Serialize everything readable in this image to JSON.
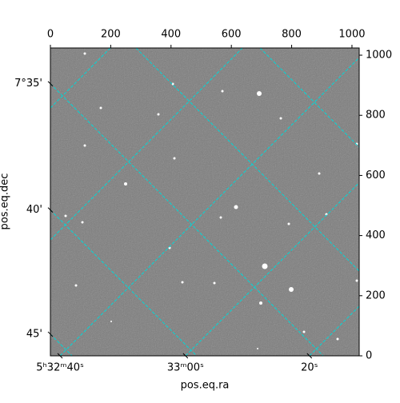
{
  "chart_data": {
    "type": "image",
    "xlabel": "pos.eq.ra",
    "ylabel": "pos.eq.dec",
    "xlim": [
      0,
      1024
    ],
    "ylim": [
      0,
      1024
    ],
    "xticks": [
      0,
      200,
      400,
      600,
      800,
      1000
    ],
    "yticks": [
      0,
      200,
      400,
      600,
      800,
      1000
    ],
    "ra_ticks": [
      {
        "value": 32,
        "label": "5ʰ32ᵐ40ˢ"
      },
      {
        "value": 448,
        "label": "33ᵐ00ˢ"
      },
      {
        "value": 859,
        "label": "20ˢ"
      }
    ],
    "dec_ticks": [
      {
        "value": 905,
        "label": "7°35'"
      },
      {
        "value": 485,
        "label": "40'"
      },
      {
        "value": 72,
        "label": "45'"
      }
    ],
    "grid": true,
    "grid_color": "#00d8d8"
  }
}
